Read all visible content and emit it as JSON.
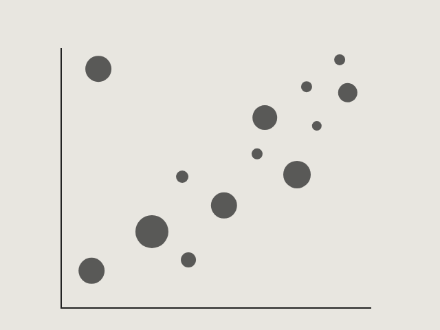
{
  "chart_data": {
    "type": "scatter",
    "x": [
      11.8,
      89.8,
      79.1,
      92.4,
      65.6,
      82.4,
      63.1,
      76.0,
      38.9,
      52.4,
      29.1,
      40.9,
      9.6
    ],
    "values": [
      92.0,
      95.5,
      85.1,
      82.8,
      73.2,
      70.0,
      59.2,
      51.2,
      50.4,
      39.3,
      29.2,
      18.3,
      14.1
    ],
    "sizes": [
      38,
      16,
      16,
      28,
      36,
      14,
      16,
      40,
      18,
      38,
      48,
      22,
      38
    ],
    "color": "#1c1c1c",
    "marker": "circle",
    "xlim": [
      0,
      100
    ],
    "ylim": [
      0,
      100
    ],
    "xticks": [],
    "yticks": [],
    "grid": false,
    "tick_labels": false
  }
}
